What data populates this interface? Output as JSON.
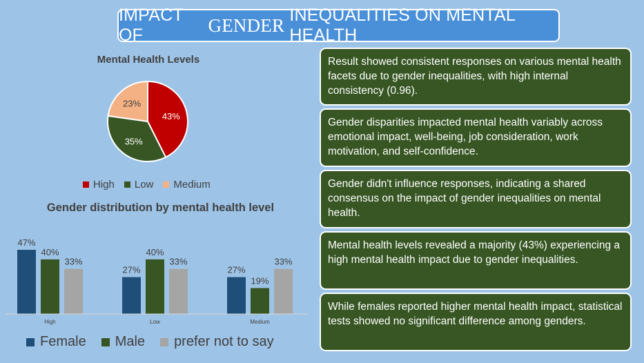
{
  "header": {
    "title_part1": "IMPACT OF ",
    "title_part2": "GENDER",
    "title_part3": " INEQUALITIES ON MENTAL HEALTH",
    "background": "#4a90d9"
  },
  "colors": {
    "page_background": "#9dc3e6",
    "card_background": "#375623",
    "female": "#1f4e79",
    "male": "#375623",
    "prefer_not_to_say": "#a5a5a5",
    "high": "#c00000",
    "low": "#375623",
    "medium": "#f4b183"
  },
  "chart_data": [
    {
      "type": "pie",
      "title": "Mental Health Levels",
      "categories": [
        "High",
        "Low",
        "Medium"
      ],
      "values": [
        43,
        35,
        23
      ],
      "labels": [
        "43%",
        "35%",
        "23%"
      ],
      "colors": [
        "#c00000",
        "#375623",
        "#f4b183"
      ],
      "legend": "bottom"
    },
    {
      "type": "bar",
      "title": "Gender distribution by mental health level",
      "categories": [
        "High",
        "Low",
        "Medium"
      ],
      "series": [
        {
          "name": "Female",
          "values": [
            47,
            27,
            27
          ],
          "labels": [
            "47%",
            "27%",
            "27%"
          ],
          "color": "#1f4e79"
        },
        {
          "name": "Male",
          "values": [
            40,
            40,
            19
          ],
          "labels": [
            "40%",
            "40%",
            "19%"
          ],
          "color": "#375623"
        },
        {
          "name": "prefer not to say",
          "values": [
            33,
            33,
            33
          ],
          "labels": [
            "33%",
            "33%",
            "33%"
          ],
          "color": "#a5a5a5"
        }
      ],
      "ylim": [
        0,
        50
      ],
      "grid": false,
      "legend": "bottom"
    }
  ],
  "findings": [
    "Result showed consistent responses on various mental health facets due to gender inequalities, with high internal consistency (0.96).",
    "Gender disparities impacted mental health variably across emotional impact, well-being, job consideration, work motivation, and self-confidence.",
    "Gender didn't influence responses, indicating a shared consensus on the impact of gender inequalities on mental health.",
    "Mental health levels revealed a majority (43%) experiencing a high mental health impact due to gender inequalities.",
    "While females reported higher mental health impact, statistical tests showed no significant difference among genders."
  ]
}
